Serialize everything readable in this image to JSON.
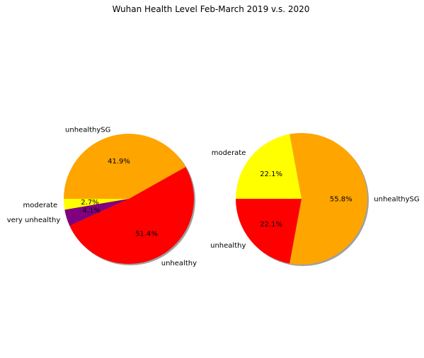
{
  "figure": {
    "title": "Wuhan Health Level Feb-March 2019 v.s. 2020"
  },
  "chart_data": [
    {
      "type": "pie",
      "title": "",
      "shadow": true,
      "start_angle_deg": 180,
      "direction": "counterclockwise",
      "slices": [
        {
          "label": "moderate",
          "value": 2.7,
          "pct_label": "2.7%",
          "color": "#ffff00"
        },
        {
          "label": "very unhealthy",
          "value": 4.1,
          "pct_label": "4.1%",
          "color": "#800080"
        },
        {
          "label": "unhealthy",
          "value": 51.4,
          "pct_label": "51.4%",
          "color": "#ff0000"
        },
        {
          "label": "unhealthySG",
          "value": 41.9,
          "pct_label": "41.9%",
          "color": "#ffa500"
        }
      ]
    },
    {
      "type": "pie",
      "title": "",
      "shadow": true,
      "start_angle_deg": 180,
      "direction": "counterclockwise",
      "slices": [
        {
          "label": "unhealthy",
          "value": 22.1,
          "pct_label": "22.1%",
          "color": "#ff0000"
        },
        {
          "label": "unhealthySG",
          "value": 55.8,
          "pct_label": "55.8%",
          "color": "#ffa500"
        },
        {
          "label": "moderate",
          "value": 22.1,
          "pct_label": "22.1%",
          "color": "#ffff00"
        }
      ]
    }
  ]
}
